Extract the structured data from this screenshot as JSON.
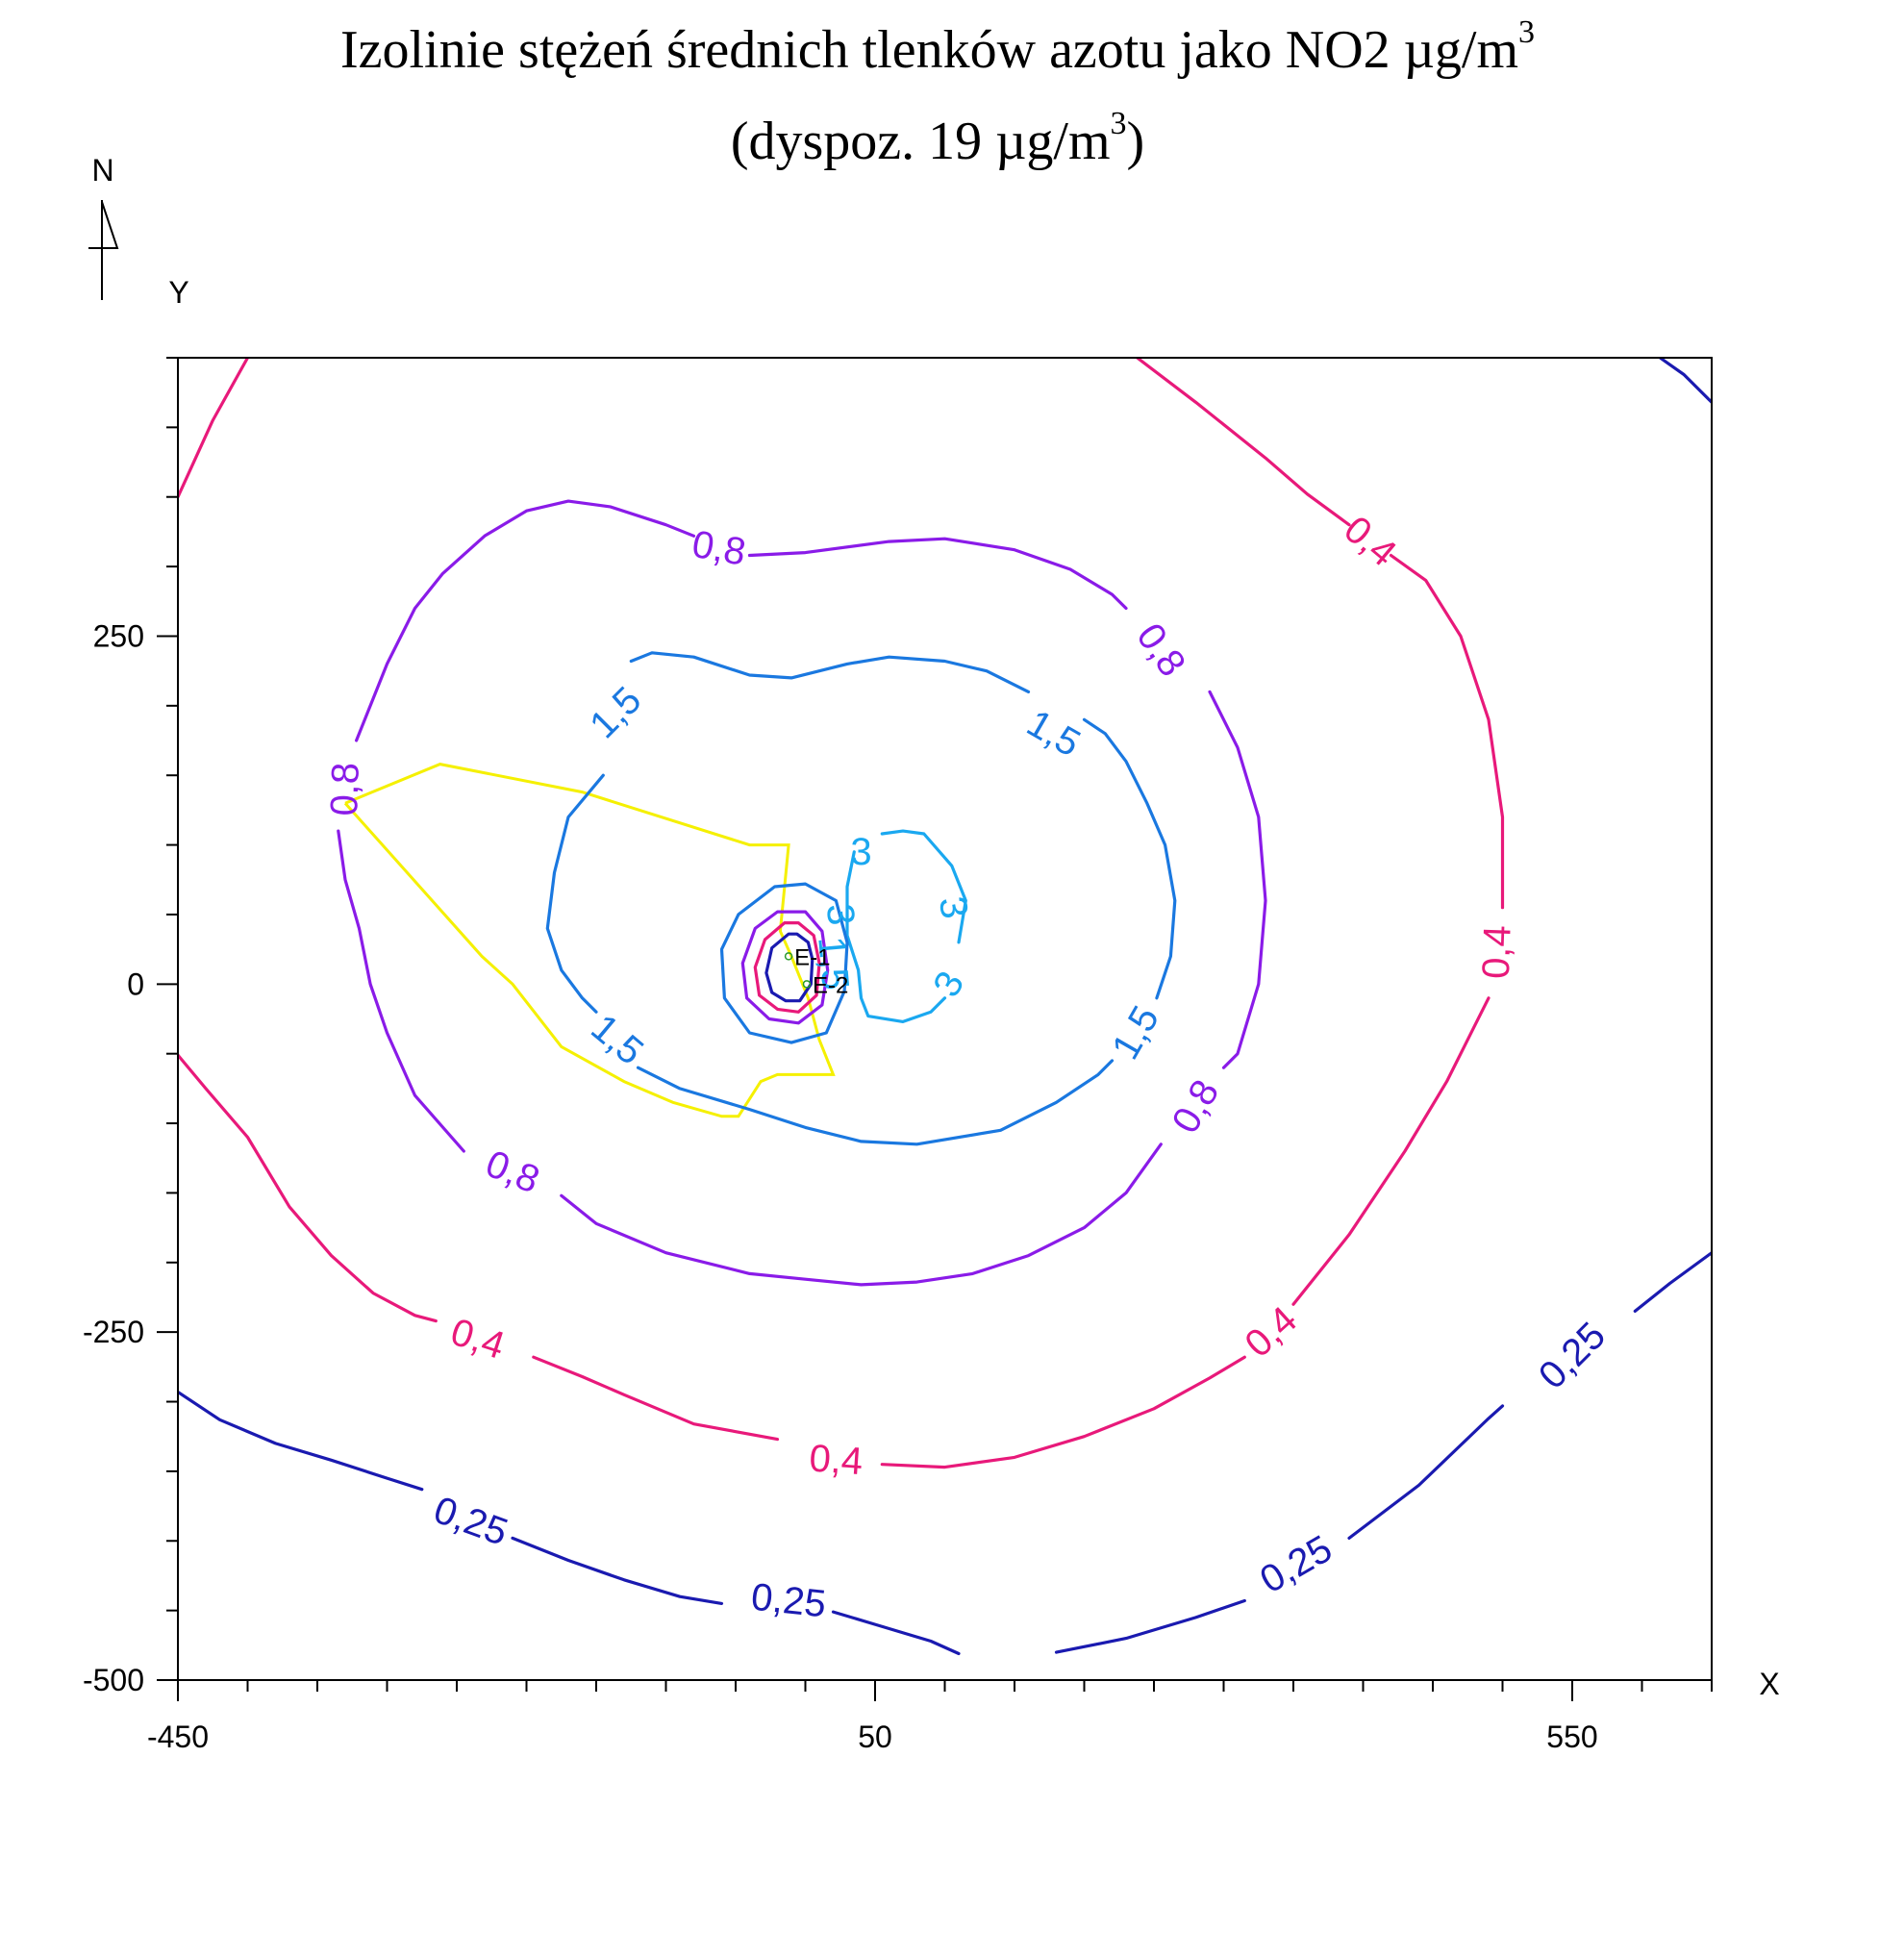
{
  "chart_data": {
    "type": "contour",
    "title_line1": "Izolinie stężeń średnich tlenków azotu jako NO2 µg/m",
    "title_line1_sup": "3",
    "title_line2_pre": "(dyspoz. 19 µg/m",
    "title_line2_sup": "3",
    "title_line2_post": ")",
    "north_label": "N",
    "xlabel": "X",
    "ylabel": "Y",
    "xlim": [
      -450,
      650
    ],
    "ylim": [
      -500,
      450
    ],
    "x_ticks": [
      -450,
      50,
      550
    ],
    "x_tick_labels": [
      "-450",
      "50",
      "550"
    ],
    "y_ticks": [
      250,
      0,
      -250,
      -500
    ],
    "y_tick_labels": [
      "250",
      "0",
      "-250",
      "-500"
    ],
    "minor_tick_step_x": 50,
    "minor_tick_step_y": 50,
    "grid": false,
    "colors": {
      "c025": "#1a1ab0",
      "c04": "#e8197a",
      "c08": "#8a1be8",
      "c15": "#1a78e0",
      "c3": "#1aa8f0",
      "boundary": "#f5f000",
      "inner_dark": "#1a1ab0",
      "source": "#2a9a2a"
    },
    "sources": [
      {
        "label": "E-1",
        "x": -12,
        "y": 20
      },
      {
        "label": "E-2",
        "x": 1,
        "y": 0
      }
    ],
    "contours": [
      {
        "level": "0,25",
        "color_key": "c025",
        "segments": [
          [
            [
              -450,
              -293
            ],
            [
              -420,
              -313
            ],
            [
              -380,
              -330
            ],
            [
              -340,
              -342
            ],
            [
              -300,
              -355
            ],
            [
              -275,
              -363
            ]
          ],
          [
            [
              -210,
              -398
            ],
            [
              -170,
              -414
            ],
            [
              -130,
              -428
            ],
            [
              -90,
              -440
            ],
            [
              -60,
              -445
            ]
          ],
          [
            [
              20,
              -451
            ],
            [
              50,
              -460
            ],
            [
              90,
              -472
            ],
            [
              110,
              -481
            ]
          ],
          [
            [
              180,
              -480
            ],
            [
              230,
              -470
            ],
            [
              280,
              -455
            ],
            [
              315,
              -443
            ]
          ],
          [
            [
              390,
              -398
            ],
            [
              440,
              -360
            ],
            [
              490,
              -312
            ],
            [
              500,
              -303
            ]
          ],
          [
            [
              595,
              -235
            ],
            [
              620,
              -215
            ],
            [
              650,
              -193
            ]
          ]
        ],
        "corner_segment": [
          [
            613,
            450
          ],
          [
            630,
            438
          ],
          [
            650,
            418
          ]
        ],
        "labels": [
          {
            "text": "0,25",
            "x": -240,
            "y": -386,
            "angle": 20
          },
          {
            "text": "0,25",
            "x": -12,
            "y": -443,
            "angle": 6
          },
          {
            "text": "0,25",
            "x": 352,
            "y": -417,
            "angle": -30
          },
          {
            "text": "0,25",
            "x": 550,
            "y": -267,
            "angle": -45
          }
        ]
      },
      {
        "level": "0,4",
        "color_key": "c04",
        "segments": [
          [
            [
              -450,
              -51
            ],
            [
              -430,
              -75
            ],
            [
              -400,
              -110
            ],
            [
              -370,
              -160
            ],
            [
              -340,
              -195
            ],
            [
              -310,
              -222
            ],
            [
              -280,
              -238
            ],
            [
              -265,
              -242
            ]
          ],
          [
            [
              -195,
              -268
            ],
            [
              -160,
              -282
            ],
            [
              -130,
              -295
            ],
            [
              -80,
              -316
            ],
            [
              -20,
              -327
            ]
          ],
          [
            [
              55,
              -345
            ],
            [
              100,
              -347
            ],
            [
              150,
              -340
            ],
            [
              200,
              -325
            ],
            [
              250,
              -305
            ],
            [
              290,
              -283
            ],
            [
              315,
              -268
            ]
          ],
          [
            [
              350,
              -230
            ],
            [
              390,
              -180
            ],
            [
              430,
              -120
            ],
            [
              460,
              -70
            ],
            [
              480,
              -30
            ],
            [
              490,
              -10
            ]
          ],
          [
            [
              500,
              55
            ],
            [
              500,
              120
            ],
            [
              490,
              190
            ],
            [
              470,
              250
            ],
            [
              445,
              290
            ],
            [
              420,
              308
            ]
          ],
          [
            [
              390,
              330
            ],
            [
              360,
              352
            ],
            [
              330,
              378
            ],
            [
              280,
              418
            ],
            [
              238,
              450
            ]
          ],
          [
            [
              -400,
              450
            ],
            [
              -425,
              405
            ],
            [
              -450,
              350
            ]
          ]
        ],
        "labels": [
          {
            "text": "0,4",
            "x": -235,
            "y": -255,
            "angle": 18
          },
          {
            "text": "0,4",
            "x": 22,
            "y": -342,
            "angle": 4
          },
          {
            "text": "0,4",
            "x": 334,
            "y": -250,
            "angle": -42
          },
          {
            "text": "0,4",
            "x": 496,
            "y": 23,
            "angle": -88
          },
          {
            "text": "0,4",
            "x": 405,
            "y": 318,
            "angle": 40
          }
        ]
      },
      {
        "level": "0,8",
        "color_key": "c08",
        "segments": [
          [
            [
              -40,
              308
            ],
            [
              0,
              310
            ],
            [
              60,
              318
            ],
            [
              100,
              320
            ],
            [
              150,
              312
            ],
            [
              190,
              298
            ],
            [
              220,
              280
            ],
            [
              230,
              270
            ]
          ],
          [
            [
              290,
              210
            ],
            [
              310,
              170
            ],
            [
              325,
              120
            ],
            [
              330,
              60
            ],
            [
              325,
              0
            ],
            [
              310,
              -50
            ],
            [
              300,
              -60
            ]
          ],
          [
            [
              255,
              -115
            ],
            [
              230,
              -150
            ],
            [
              200,
              -175
            ],
            [
              160,
              -195
            ],
            [
              120,
              -208
            ],
            [
              80,
              -214
            ],
            [
              40,
              -216
            ],
            [
              0,
              -212
            ],
            [
              -40,
              -208
            ],
            [
              -100,
              -193
            ],
            [
              -150,
              -172
            ],
            [
              -175,
              -152
            ]
          ],
          [
            [
              -245,
              -120
            ],
            [
              -280,
              -80
            ],
            [
              -300,
              -35
            ],
            [
              -312,
              0
            ],
            [
              -320,
              40
            ],
            [
              -330,
              75
            ],
            [
              -335,
              110
            ]
          ],
          [
            [
              -322,
              175
            ],
            [
              -300,
              230
            ],
            [
              -280,
              270
            ],
            [
              -260,
              295
            ],
            [
              -230,
              322
            ],
            [
              -200,
              340
            ],
            [
              -170,
              347
            ],
            [
              -140,
              343
            ],
            [
              -100,
              330
            ],
            [
              -80,
              322
            ]
          ]
        ],
        "labels": [
          {
            "text": "0,8",
            "x": -62,
            "y": 313,
            "angle": 10
          },
          {
            "text": "0,8",
            "x": 255,
            "y": 240,
            "angle": 55
          },
          {
            "text": "0,8",
            "x": 280,
            "y": -88,
            "angle": -60
          },
          {
            "text": "0,8",
            "x": -210,
            "y": -135,
            "angle": 22
          },
          {
            "text": "0,8",
            "x": -330,
            "y": 140,
            "angle": -88
          }
        ]
      },
      {
        "level": "1,5",
        "color_key": "c15",
        "segments": [
          [
            [
              -145,
              150
            ],
            [
              -170,
              120
            ],
            [
              -180,
              80
            ],
            [
              -185,
              40
            ],
            [
              -175,
              10
            ],
            [
              -160,
              -10
            ],
            [
              -150,
              -20
            ]
          ],
          [
            [
              -120,
              -60
            ],
            [
              -90,
              -75
            ],
            [
              -40,
              -90
            ],
            [
              0,
              -103
            ],
            [
              40,
              -113
            ],
            [
              80,
              -115
            ],
            [
              140,
              -105
            ],
            [
              180,
              -85
            ],
            [
              210,
              -65
            ],
            [
              220,
              -55
            ]
          ],
          [
            [
              252,
              -10
            ],
            [
              262,
              20
            ],
            [
              265,
              60
            ],
            [
              258,
              100
            ],
            [
              245,
              130
            ],
            [
              230,
              160
            ],
            [
              215,
              180
            ],
            [
              200,
              190
            ]
          ],
          [
            [
              160,
              210
            ],
            [
              130,
              225
            ],
            [
              100,
              232
            ],
            [
              60,
              235
            ],
            [
              30,
              230
            ],
            [
              -10,
              220
            ],
            [
              -40,
              222
            ],
            [
              -80,
              235
            ],
            [
              -110,
              238
            ],
            [
              -125,
              232
            ]
          ]
        ],
        "labels": [
          {
            "text": "1,5",
            "x": -136,
            "y": 195,
            "angle": -45
          },
          {
            "text": "1,5",
            "x": 178,
            "y": 180,
            "angle": 30
          },
          {
            "text": "1,5",
            "x": 237,
            "y": -35,
            "angle": -60
          },
          {
            "text": "1,5",
            "x": -135,
            "y": -40,
            "angle": 40
          }
        ]
      },
      {
        "level": "3",
        "color_key": "c3",
        "segments": [
          [
            [
              35,
              95
            ],
            [
              30,
              70
            ],
            [
              30,
              35
            ],
            [
              38,
              10
            ],
            [
              40,
              -10
            ],
            [
              45,
              -23
            ],
            [
              70,
              -27
            ],
            [
              90,
              -20
            ],
            [
              100,
              -10
            ]
          ],
          [
            [
              110,
              30
            ],
            [
              115,
              60
            ],
            [
              105,
              85
            ],
            [
              85,
              108
            ],
            [
              70,
              110
            ],
            [
              55,
              108
            ]
          ]
        ],
        "labels": [
          {
            "text": "3",
            "x": 40,
            "y": 95,
            "angle": 0
          },
          {
            "text": "3",
            "x": 106,
            "y": 55,
            "angle": 80
          },
          {
            "text": "3",
            "x": 103,
            "y": 0,
            "angle": -60
          },
          {
            "text": "3",
            "x": 25,
            "y": 50,
            "angle": 85
          }
        ]
      }
    ],
    "inner_rings": [
      {
        "color_key": "c15",
        "points": [
          [
            -22,
            70
          ],
          [
            -48,
            50
          ],
          [
            -60,
            25
          ],
          [
            -58,
            -10
          ],
          [
            -40,
            -35
          ],
          [
            -10,
            -42
          ],
          [
            15,
            -35
          ],
          [
            28,
            -5
          ],
          [
            30,
            30
          ],
          [
            22,
            60
          ],
          [
            0,
            72
          ]
        ]
      },
      {
        "color_key": "c08",
        "points": [
          [
            -20,
            52
          ],
          [
            -36,
            40
          ],
          [
            -45,
            15
          ],
          [
            -42,
            -10
          ],
          [
            -26,
            -25
          ],
          [
            -5,
            -28
          ],
          [
            12,
            -15
          ],
          [
            16,
            10
          ],
          [
            12,
            38
          ],
          [
            0,
            52
          ]
        ]
      },
      {
        "color_key": "c04",
        "points": [
          [
            -15,
            44
          ],
          [
            -29,
            32
          ],
          [
            -36,
            12
          ],
          [
            -33,
            -8
          ],
          [
            -20,
            -18
          ],
          [
            -5,
            -20
          ],
          [
            8,
            -8
          ],
          [
            10,
            15
          ],
          [
            6,
            35
          ],
          [
            -5,
            44
          ]
        ]
      },
      {
        "color_key": "inner_dark",
        "points": [
          [
            -12,
            36
          ],
          [
            -24,
            26
          ],
          [
            -28,
            8
          ],
          [
            -24,
            -6
          ],
          [
            -14,
            -12
          ],
          [
            -4,
            -12
          ],
          [
            4,
            0
          ],
          [
            5,
            18
          ],
          [
            2,
            30
          ],
          [
            -6,
            36
          ]
        ]
      }
    ],
    "boundary_polygon": [
      [
        -330,
        130
      ],
      [
        -262,
        158
      ],
      [
        -160,
        138
      ],
      [
        -40,
        100
      ],
      [
        -12,
        100
      ],
      [
        -18,
        38
      ],
      [
        -10,
        20
      ],
      [
        2,
        -10
      ],
      [
        10,
        -40
      ],
      [
        20,
        -65
      ],
      [
        8,
        -65
      ],
      [
        -20,
        -65
      ],
      [
        -32,
        -70
      ],
      [
        -48,
        -95
      ],
      [
        -60,
        -95
      ],
      [
        -95,
        -85
      ],
      [
        -130,
        -70
      ],
      [
        -175,
        -45
      ],
      [
        -210,
        0
      ],
      [
        -232,
        20
      ],
      [
        -330,
        130
      ]
    ],
    "e_label_dark": "E-1",
    "e2_label": "E-2",
    "label_15_inner": "1,5"
  }
}
